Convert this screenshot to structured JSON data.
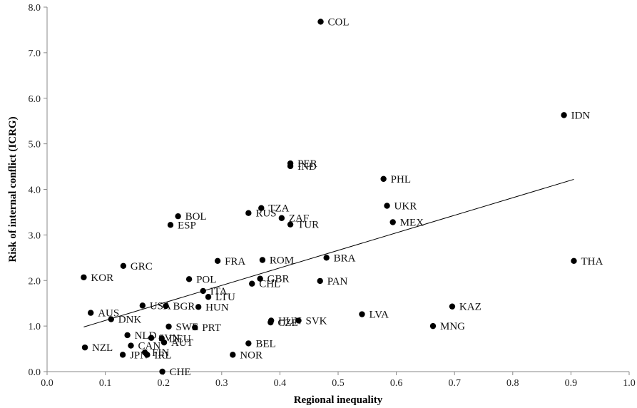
{
  "chart_data": {
    "type": "scatter",
    "title": "",
    "xlabel": "Regional inequality",
    "ylabel": "Risk of internal conflict (ICRG)",
    "xlim": [
      0.0,
      1.0
    ],
    "ylim": [
      0.0,
      8.0
    ],
    "x_ticks": [
      "0.0",
      "0.1",
      "0.2",
      "0.3",
      "0.4",
      "0.5",
      "0.6",
      "0.7",
      "0.8",
      "0.9",
      "1.0"
    ],
    "y_ticks": [
      "0.0",
      "1.0",
      "2.0",
      "3.0",
      "4.0",
      "5.0",
      "6.0",
      "7.0",
      "8.0"
    ],
    "grid": false,
    "legend": "none",
    "trendline": {
      "x": [
        0.063,
        0.905
      ],
      "y": [
        0.98,
        4.22
      ]
    },
    "points": [
      {
        "label": "COL",
        "x": 0.47,
        "y": 7.68
      },
      {
        "label": "IDN",
        "x": 0.888,
        "y": 5.63
      },
      {
        "label": "PER",
        "x": 0.418,
        "y": 4.57
      },
      {
        "label": "IND",
        "x": 0.418,
        "y": 4.51
      },
      {
        "label": "PHL",
        "x": 0.578,
        "y": 4.23
      },
      {
        "label": "UKR",
        "x": 0.584,
        "y": 3.64
      },
      {
        "label": "TZA",
        "x": 0.368,
        "y": 3.59
      },
      {
        "label": "RUS",
        "x": 0.346,
        "y": 3.48
      },
      {
        "label": "BOL",
        "x": 0.225,
        "y": 3.41
      },
      {
        "label": "ZAF",
        "x": 0.403,
        "y": 3.37
      },
      {
        "label": "MEX",
        "x": 0.594,
        "y": 3.28
      },
      {
        "label": "TUR",
        "x": 0.418,
        "y": 3.23
      },
      {
        "label": "ESP",
        "x": 0.212,
        "y": 3.22
      },
      {
        "label": "BRA",
        "x": 0.48,
        "y": 2.5
      },
      {
        "label": "FRA",
        "x": 0.293,
        "y": 2.43
      },
      {
        "label": "ROM",
        "x": 0.37,
        "y": 2.45
      },
      {
        "label": "THA",
        "x": 0.905,
        "y": 2.43
      },
      {
        "label": "GRC",
        "x": 0.131,
        "y": 2.32
      },
      {
        "label": "KOR",
        "x": 0.063,
        "y": 2.07
      },
      {
        "label": "POL",
        "x": 0.244,
        "y": 2.03
      },
      {
        "label": "GBR",
        "x": 0.366,
        "y": 2.04
      },
      {
        "label": "PAN",
        "x": 0.469,
        "y": 1.99
      },
      {
        "label": "CHL",
        "x": 0.352,
        "y": 1.93
      },
      {
        "label": "ITA",
        "x": 0.268,
        "y": 1.77
      },
      {
        "label": "LTU",
        "x": 0.277,
        "y": 1.64
      },
      {
        "label": "USA",
        "x": 0.164,
        "y": 1.45
      },
      {
        "label": "BGR",
        "x": 0.204,
        "y": 1.44
      },
      {
        "label": "HUN",
        "x": 0.26,
        "y": 1.42
      },
      {
        "label": "AUS",
        "x": 0.075,
        "y": 1.29
      },
      {
        "label": "LVA",
        "x": 0.541,
        "y": 1.26
      },
      {
        "label": "KAZ",
        "x": 0.696,
        "y": 1.43
      },
      {
        "label": "DNK",
        "x": 0.11,
        "y": 1.15
      },
      {
        "label": "HUN",
        "x": 0.385,
        "y": 1.12
      },
      {
        "label": "CZE",
        "x": 0.384,
        "y": 1.08
      },
      {
        "label": "SVK",
        "x": 0.432,
        "y": 1.12
      },
      {
        "label": "SWE",
        "x": 0.209,
        "y": 0.99
      },
      {
        "label": "PRT",
        "x": 0.254,
        "y": 0.97
      },
      {
        "label": "MNG",
        "x": 0.663,
        "y": 1.0
      },
      {
        "label": "NLD",
        "x": 0.138,
        "y": 0.8
      },
      {
        "label": "SVN",
        "x": 0.179,
        "y": 0.74
      },
      {
        "label": "DEU",
        "x": 0.197,
        "y": 0.73
      },
      {
        "label": "AUT",
        "x": 0.201,
        "y": 0.64
      },
      {
        "label": "CAN",
        "x": 0.144,
        "y": 0.57
      },
      {
        "label": "BEL",
        "x": 0.346,
        "y": 0.62
      },
      {
        "label": "NZL",
        "x": 0.065,
        "y": 0.53
      },
      {
        "label": "FIN",
        "x": 0.168,
        "y": 0.42
      },
      {
        "label": "JPN",
        "x": 0.13,
        "y": 0.37
      },
      {
        "label": "IRL",
        "x": 0.172,
        "y": 0.37
      },
      {
        "label": "NOR",
        "x": 0.319,
        "y": 0.37
      },
      {
        "label": "CHE",
        "x": 0.198,
        "y": 0.0
      }
    ]
  }
}
